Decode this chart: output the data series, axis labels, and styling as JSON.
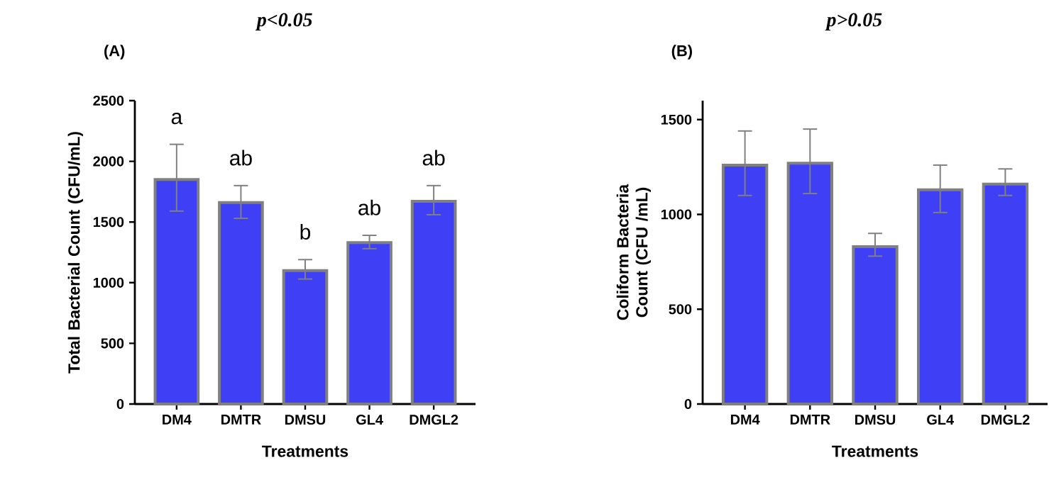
{
  "chart_data": [
    {
      "type": "bar",
      "title": "p<0.05",
      "xlabel": "Treatments",
      "ylabel": "Total Bacterial Count (CFU/mL)",
      "categories": [
        "DM4",
        "DMTR",
        "DMSU",
        "GL4",
        "DMGL2"
      ],
      "values": [
        1850,
        1660,
        1100,
        1330,
        1670
      ],
      "color": "#3f3ff5",
      "errors": [
        [
          1590,
          2140
        ],
        [
          1530,
          1800
        ],
        [
          1030,
          1190
        ],
        [
          1280,
          1390
        ],
        [
          1560,
          1800
        ]
      ],
      "ylim": [
        0,
        2500
      ],
      "yticks": [
        0,
        500,
        1000,
        1500,
        2000,
        2500
      ],
      "annotations": [
        "(A)",
        "a",
        "ab",
        "b",
        "ab",
        "ab"
      ]
    },
    {
      "type": "bar",
      "title": "p>0.05",
      "xlabel": "Treatments",
      "ylabel": "Coliform Bacteria Count (CFU /mL)",
      "categories": [
        "DM4",
        "DMTR",
        "DMSU",
        "GL4",
        "DMGL2"
      ],
      "values": [
        1260,
        1270,
        830,
        1130,
        1160
      ],
      "color": "#3f3ff5",
      "errors": [
        [
          1100,
          1440
        ],
        [
          1110,
          1450
        ],
        [
          780,
          900
        ],
        [
          1010,
          1260
        ],
        [
          1100,
          1240
        ]
      ],
      "ylim": [
        0,
        1600
      ],
      "yticks": [
        0,
        500,
        1000,
        1500
      ],
      "annotations": [
        "(B)"
      ]
    }
  ]
}
